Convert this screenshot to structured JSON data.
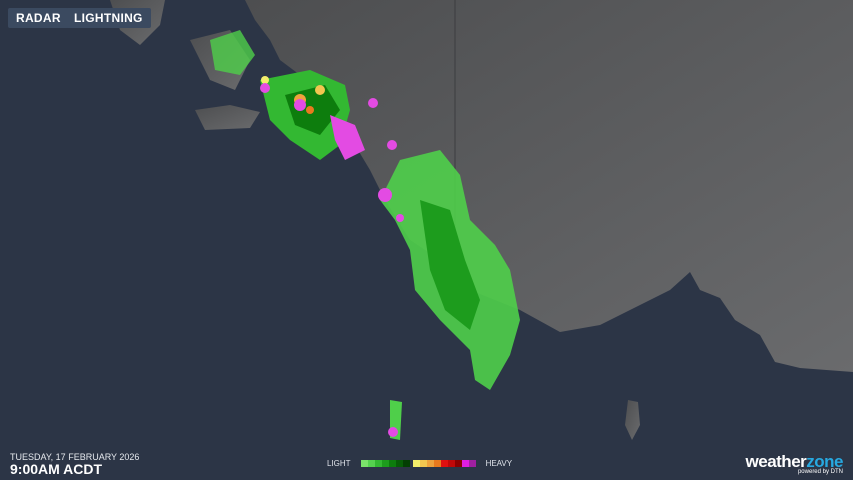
{
  "buttons": {
    "radar": "RADAR",
    "lightning": "LIGHTNING"
  },
  "timestamp": {
    "date": "TUESDAY, 17 FEBRUARY 2026",
    "time": "9:00AM ACDT"
  },
  "legend": {
    "light": "LIGHT",
    "heavy": "HEAVY",
    "colors": [
      "#7be36b",
      "#55d24f",
      "#33b832",
      "#1d9c1d",
      "#0d7d0d",
      "#075d07",
      "#033f03",
      "gap",
      "#f4ee6c",
      "#f2c650",
      "#eea23c",
      "#e97a1e",
      "#e01010",
      "#c00808",
      "#8a0000",
      "#e01ee0",
      "#a020a0"
    ]
  },
  "brand": {
    "name_a": "weather",
    "name_b": "zone",
    "tagline": "powered by DTN"
  },
  "colors": {
    "ocean": "#2c3546",
    "land": "#5f6062",
    "radar_light": "#4fcf4a",
    "radar_heavy": "#e34be3"
  }
}
